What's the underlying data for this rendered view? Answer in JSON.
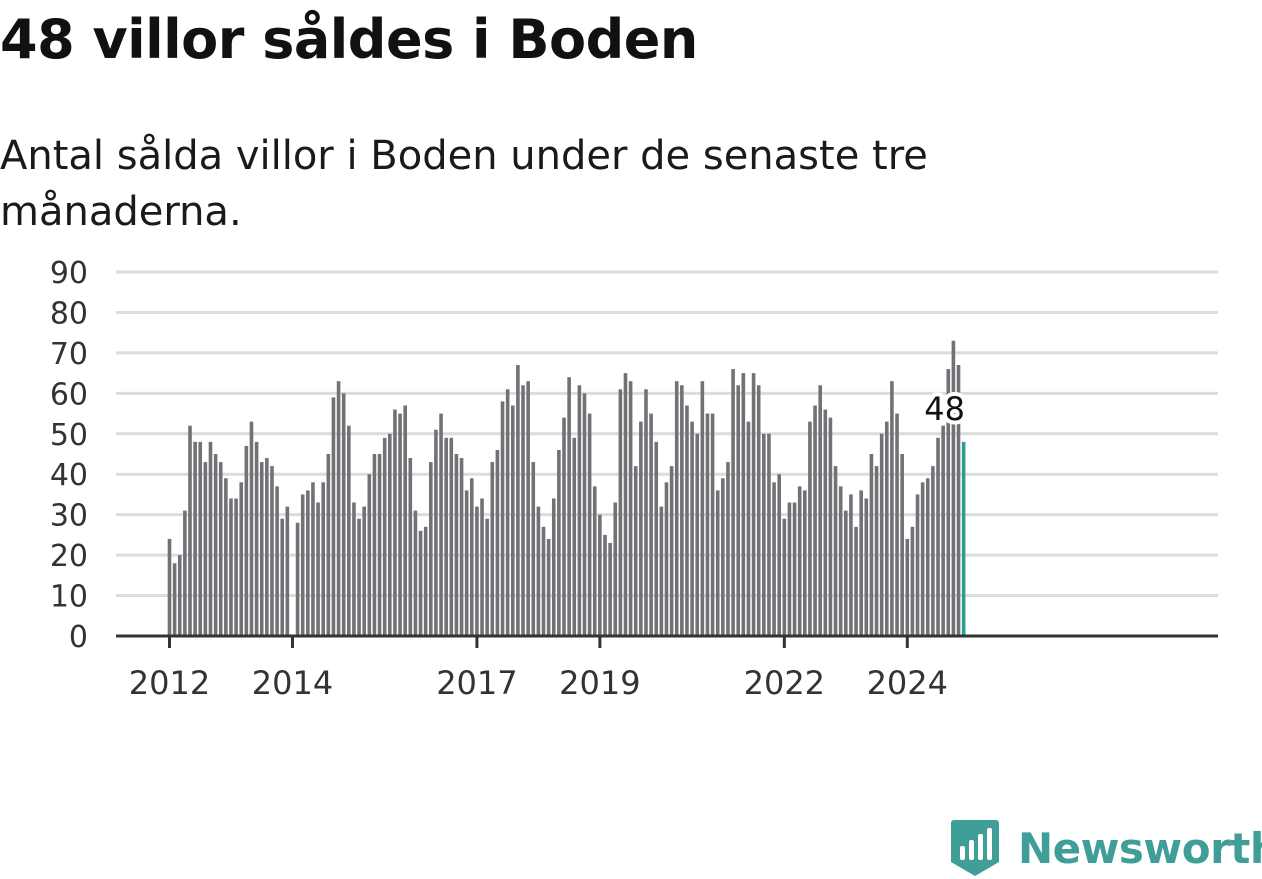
{
  "title": "48 villor såldes i Boden",
  "subtitle": "Antal sålda villor i Boden under de senaste tre månaderna.",
  "brand": {
    "name": "Newsworthy",
    "icon": "newsworthy-logo-icon",
    "color": "#3f9e98"
  },
  "colors": {
    "bar": "#727176",
    "highlight": "#2e9e94",
    "grid": "#dcdcdc",
    "axis": "#333333"
  },
  "chart_data": {
    "type": "bar",
    "title": "48 villor såldes i Boden",
    "subtitle": "Antal sålda villor i Boden under de senaste tre månaderna.",
    "xlabel": "",
    "ylabel": "",
    "ylim": [
      0,
      90
    ],
    "yticks": [
      0,
      10,
      20,
      30,
      40,
      50,
      60,
      70,
      80,
      90
    ],
    "xtick_labels": [
      "2012",
      "2014",
      "2017",
      "2019",
      "2022",
      "2024"
    ],
    "grid": true,
    "legend": "none",
    "start": "2012-01",
    "highlight_label": "48",
    "categories": [
      "2012-01",
      "2012-02",
      "2012-03",
      "2012-04",
      "2012-05",
      "2012-06",
      "2012-07",
      "2012-08",
      "2012-09",
      "2012-10",
      "2012-11",
      "2012-12",
      "2013-01",
      "2013-02",
      "2013-03",
      "2013-04",
      "2013-05",
      "2013-06",
      "2013-07",
      "2013-08",
      "2013-09",
      "2013-10",
      "2013-11",
      "2013-12",
      "2014-01",
      "2014-02",
      "2014-03",
      "2014-04",
      "2014-05",
      "2014-06",
      "2014-07",
      "2014-08",
      "2014-09",
      "2014-10",
      "2014-11",
      "2014-12",
      "2015-01",
      "2015-02",
      "2015-03",
      "2015-04",
      "2015-05",
      "2015-06",
      "2015-07",
      "2015-08",
      "2015-09",
      "2015-10",
      "2015-11",
      "2015-12",
      "2016-01",
      "2016-02",
      "2016-03",
      "2016-04",
      "2016-05",
      "2016-06",
      "2016-07",
      "2016-08",
      "2016-09",
      "2016-10",
      "2016-11",
      "2016-12",
      "2017-01",
      "2017-02",
      "2017-03",
      "2017-04",
      "2017-05",
      "2017-06",
      "2017-07",
      "2017-08",
      "2017-09",
      "2017-10",
      "2017-11",
      "2017-12",
      "2018-01",
      "2018-02",
      "2018-03",
      "2018-04",
      "2018-05",
      "2018-06",
      "2018-07",
      "2018-08",
      "2018-09",
      "2018-10",
      "2018-11",
      "2018-12",
      "2019-01",
      "2019-02",
      "2019-03",
      "2019-04",
      "2019-05",
      "2019-06",
      "2019-07",
      "2019-08",
      "2019-09",
      "2019-10",
      "2019-11",
      "2019-12",
      "2020-01",
      "2020-02",
      "2020-03",
      "2020-04",
      "2020-05",
      "2020-06",
      "2020-07",
      "2020-08",
      "2020-09",
      "2020-10",
      "2020-11",
      "2020-12",
      "2021-01",
      "2021-02",
      "2021-03",
      "2021-04",
      "2021-05",
      "2021-06",
      "2021-07",
      "2021-08",
      "2021-09",
      "2021-10",
      "2021-11",
      "2021-12",
      "2022-01",
      "2022-02",
      "2022-03",
      "2022-04",
      "2022-05",
      "2022-06",
      "2022-07",
      "2022-08",
      "2022-09",
      "2022-10",
      "2022-11",
      "2022-12",
      "2023-01",
      "2023-02",
      "2023-03",
      "2023-04",
      "2023-05",
      "2023-06",
      "2023-07",
      "2023-08",
      "2023-09",
      "2023-10",
      "2023-11",
      "2023-12",
      "2024-01",
      "2024-02",
      "2024-03",
      "2024-04",
      "2024-05",
      "2024-06",
      "2024-07",
      "2024-08",
      "2024-09",
      "2024-10",
      "2024-11",
      "2024-12"
    ],
    "values": [
      24,
      18,
      20,
      31,
      52,
      48,
      48,
      43,
      48,
      45,
      43,
      39,
      34,
      34,
      38,
      47,
      53,
      48,
      43,
      44,
      42,
      37,
      29,
      32,
      0,
      28,
      35,
      36,
      38,
      33,
      38,
      45,
      59,
      63,
      60,
      52,
      33,
      29,
      32,
      40,
      45,
      45,
      49,
      50,
      56,
      55,
      57,
      44,
      31,
      26,
      27,
      43,
      51,
      55,
      49,
      49,
      45,
      44,
      36,
      39,
      32,
      34,
      29,
      43,
      46,
      58,
      61,
      57,
      67,
      62,
      63,
      43,
      32,
      27,
      24,
      34,
      46,
      54,
      64,
      49,
      62,
      60,
      55,
      37,
      30,
      25,
      23,
      33,
      61,
      65,
      63,
      42,
      53,
      61,
      55,
      48,
      32,
      38,
      42,
      63,
      62,
      57,
      53,
      50,
      63,
      55,
      55,
      36,
      39,
      43,
      66,
      62,
      65,
      53,
      65,
      62,
      50,
      50,
      38,
      40,
      29,
      33,
      33,
      37,
      36,
      53,
      57,
      62,
      56,
      54,
      42,
      37,
      31,
      35,
      27,
      36,
      34,
      45,
      42,
      50,
      53,
      63,
      55,
      45,
      24,
      27,
      35,
      38,
      39,
      42,
      49,
      52,
      66,
      73,
      67,
      48
    ]
  }
}
